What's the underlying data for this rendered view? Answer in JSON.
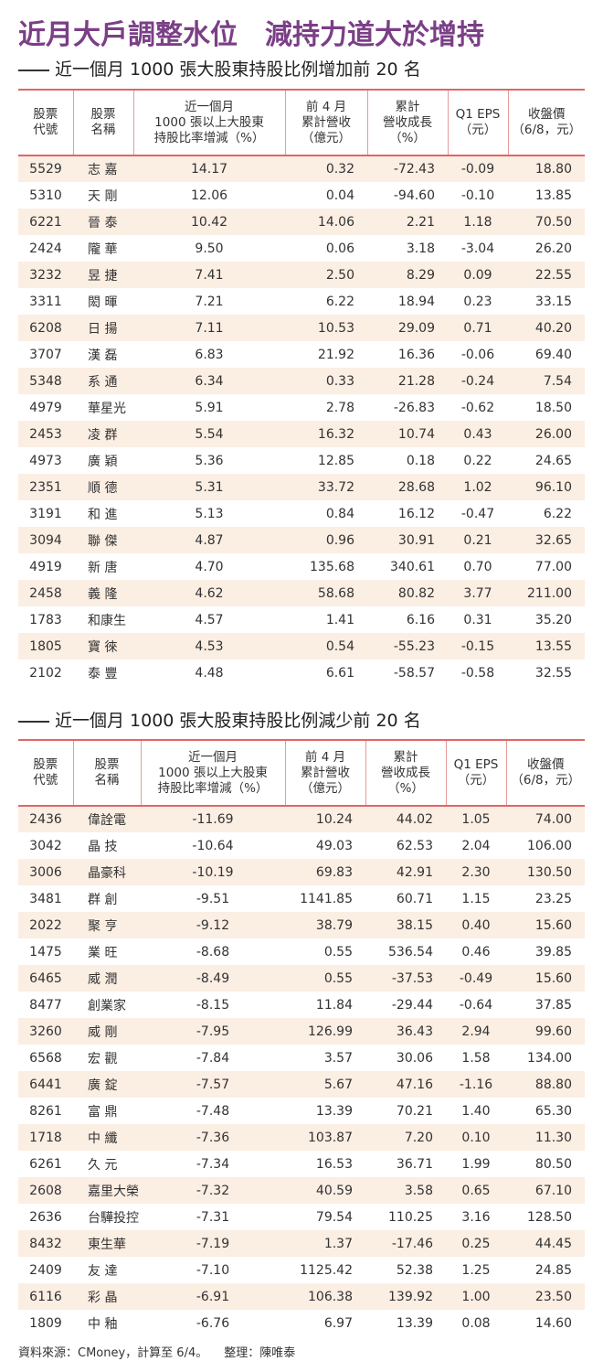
{
  "title": "近月大戶調整水位　減持力道大於增持",
  "section1_title": "近一個月 1000 張大股東持股比例增加前 20 名",
  "section2_title": "近一個月 1000 張大股東持股比例減少前 20 名",
  "headers": [
    "股票\n代號",
    "股票\n名稱",
    "近一個月\n1000 張以上大股東\n持股比率增減（%）",
    "前 4 月\n累計營收\n（億元）",
    "累計\n營收成長\n（%）",
    "Q1 EPS\n（元）",
    "收盤價\n（6/8，元）"
  ],
  "table1": [
    [
      "5529",
      "志 嘉",
      "14.17",
      "0.32",
      "-72.43",
      "-0.09",
      "18.80"
    ],
    [
      "5310",
      "天 剛",
      "12.06",
      "0.04",
      "-94.60",
      "-0.10",
      "13.85"
    ],
    [
      "6221",
      "晉 泰",
      "10.42",
      "14.06",
      "2.21",
      "1.18",
      "70.50"
    ],
    [
      "2424",
      "隴 華",
      "9.50",
      "0.06",
      "3.18",
      "-3.04",
      "26.20"
    ],
    [
      "3232",
      "昱 捷",
      "7.41",
      "2.50",
      "8.29",
      "0.09",
      "22.55"
    ],
    [
      "3311",
      "閎 暉",
      "7.21",
      "6.22",
      "18.94",
      "0.23",
      "33.15"
    ],
    [
      "6208",
      "日 揚",
      "7.11",
      "10.53",
      "29.09",
      "0.71",
      "40.20"
    ],
    [
      "3707",
      "漢 磊",
      "6.83",
      "21.92",
      "16.36",
      "-0.06",
      "69.40"
    ],
    [
      "5348",
      "系 通",
      "6.34",
      "0.33",
      "21.28",
      "-0.24",
      "7.54"
    ],
    [
      "4979",
      "華星光",
      "5.91",
      "2.78",
      "-26.83",
      "-0.62",
      "18.50"
    ],
    [
      "2453",
      "凌 群",
      "5.54",
      "16.32",
      "10.74",
      "0.43",
      "26.00"
    ],
    [
      "4973",
      "廣 穎",
      "5.36",
      "12.85",
      "0.18",
      "0.22",
      "24.65"
    ],
    [
      "2351",
      "順 德",
      "5.31",
      "33.72",
      "28.68",
      "1.02",
      "96.10"
    ],
    [
      "3191",
      "和 進",
      "5.13",
      "0.84",
      "16.12",
      "-0.47",
      "6.22"
    ],
    [
      "3094",
      "聯 傑",
      "4.87",
      "0.96",
      "30.91",
      "0.21",
      "32.65"
    ],
    [
      "4919",
      "新 唐",
      "4.70",
      "135.68",
      "340.61",
      "0.70",
      "77.00"
    ],
    [
      "2458",
      "義 隆",
      "4.62",
      "58.68",
      "80.82",
      "3.77",
      "211.00"
    ],
    [
      "1783",
      "和康生",
      "4.57",
      "1.41",
      "6.16",
      "0.31",
      "35.20"
    ],
    [
      "1805",
      "寶 徠",
      "4.53",
      "0.54",
      "-55.23",
      "-0.15",
      "13.55"
    ],
    [
      "2102",
      "泰 豐",
      "4.48",
      "6.61",
      "-58.57",
      "-0.58",
      "32.55"
    ]
  ],
  "table2": [
    [
      "2436",
      "偉詮電",
      "-11.69",
      "10.24",
      "44.02",
      "1.05",
      "74.00"
    ],
    [
      "3042",
      "晶 技",
      "-10.64",
      "49.03",
      "62.53",
      "2.04",
      "106.00"
    ],
    [
      "3006",
      "晶豪科",
      "-10.19",
      "69.83",
      "42.91",
      "2.30",
      "130.50"
    ],
    [
      "3481",
      "群 創",
      "-9.51",
      "1141.85",
      "60.71",
      "1.15",
      "23.25"
    ],
    [
      "2022",
      "聚 亨",
      "-9.12",
      "38.79",
      "38.15",
      "0.40",
      "15.60"
    ],
    [
      "1475",
      "業 旺",
      "-8.68",
      "0.55",
      "536.54",
      "0.46",
      "39.85"
    ],
    [
      "6465",
      "威 潤",
      "-8.49",
      "0.55",
      "-37.53",
      "-0.49",
      "15.60"
    ],
    [
      "8477",
      "創業家",
      "-8.15",
      "11.84",
      "-29.44",
      "-0.64",
      "37.85"
    ],
    [
      "3260",
      "威 剛",
      "-7.95",
      "126.99",
      "36.43",
      "2.94",
      "99.60"
    ],
    [
      "6568",
      "宏 觀",
      "-7.84",
      "3.57",
      "30.06",
      "1.58",
      "134.00"
    ],
    [
      "6441",
      "廣 錠",
      "-7.57",
      "5.67",
      "47.16",
      "-1.16",
      "88.80"
    ],
    [
      "8261",
      "富 鼎",
      "-7.48",
      "13.39",
      "70.21",
      "1.40",
      "65.30"
    ],
    [
      "1718",
      "中 纖",
      "-7.36",
      "103.87",
      "7.20",
      "0.10",
      "11.30"
    ],
    [
      "6261",
      "久 元",
      "-7.34",
      "16.53",
      "36.71",
      "1.99",
      "80.50"
    ],
    [
      "2608",
      "嘉里大榮",
      "-7.32",
      "40.59",
      "3.58",
      "0.65",
      "67.10"
    ],
    [
      "2636",
      "台驊投控",
      "-7.31",
      "79.54",
      "110.25",
      "3.16",
      "128.50"
    ],
    [
      "8432",
      "東生華",
      "-7.19",
      "1.37",
      "-17.46",
      "0.25",
      "44.45"
    ],
    [
      "2409",
      "友 達",
      "-7.10",
      "1125.42",
      "52.38",
      "1.25",
      "24.85"
    ],
    [
      "6116",
      "彩 晶",
      "-6.91",
      "106.38",
      "139.92",
      "1.00",
      "23.50"
    ],
    [
      "1809",
      "中 釉",
      "-6.76",
      "6.97",
      "13.39",
      "0.08",
      "14.60"
    ]
  ],
  "footer": {
    "source": "資料來源：CMoney，計算至 6/4。",
    "editor": "整理：陳唯泰"
  },
  "colors": {
    "title": "#7b3f86",
    "rule": "#e06666",
    "band": "#fbeee3"
  }
}
